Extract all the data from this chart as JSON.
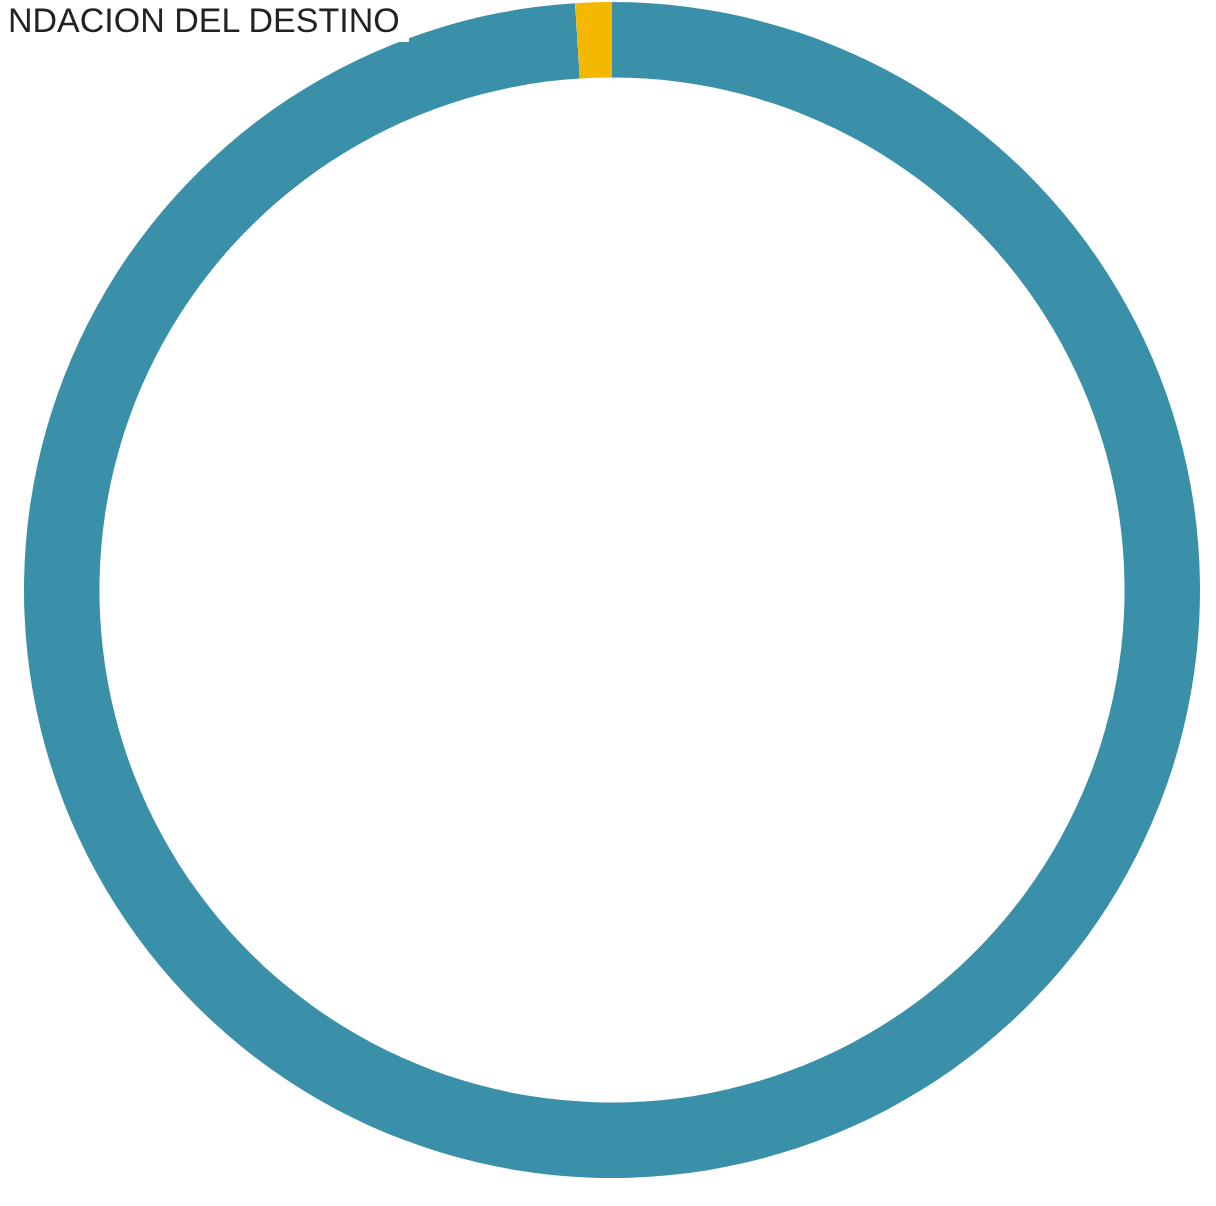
{
  "chart_data": {
    "type": "donut",
    "title": "NDACION DEL DESTINO",
    "categories": [
      null,
      null
    ],
    "values": [
      99,
      1
    ],
    "colors": [
      "#3a90a8",
      "#f5b800"
    ]
  }
}
